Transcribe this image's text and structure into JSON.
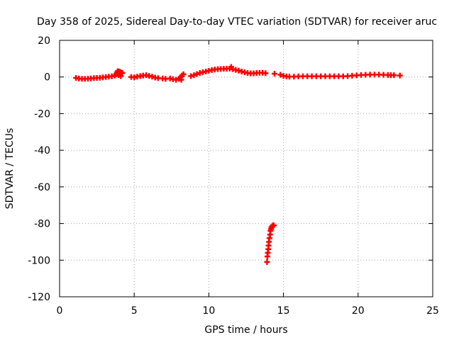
{
  "chart_data": {
    "type": "scatter",
    "title": "Day 358 of 2025, Sidereal Day-to-day VTEC variation (SDTVAR) for receiver aruc",
    "xlabel": "GPS time / hours",
    "ylabel": "SDTVAR / TECUs",
    "xlim": [
      0,
      25
    ],
    "ylim": [
      -120,
      20
    ],
    "xticks": [
      0,
      5,
      10,
      15,
      20,
      25
    ],
    "yticks": [
      20,
      0,
      -20,
      -40,
      -60,
      -80,
      -100,
      -120
    ],
    "grid": true,
    "legend": "none",
    "marker": "plus",
    "color": "#ff0000",
    "series": [
      {
        "points": [
          [
            1.1,
            -0.5
          ],
          [
            1.3,
            -0.8
          ],
          [
            1.5,
            -1.0
          ],
          [
            1.7,
            -1.0
          ],
          [
            1.9,
            -0.9
          ],
          [
            2.1,
            -0.8
          ],
          [
            2.3,
            -0.6
          ],
          [
            2.5,
            -0.5
          ],
          [
            2.7,
            -0.4
          ],
          [
            2.9,
            -0.2
          ],
          [
            3.1,
            0.0
          ],
          [
            3.3,
            0.2
          ],
          [
            3.5,
            0.4
          ],
          [
            3.7,
            0.8
          ],
          [
            3.8,
            1.5
          ],
          [
            3.85,
            2.5
          ],
          [
            3.9,
            3.2
          ],
          [
            4.0,
            3.0
          ],
          [
            4.1,
            2.6
          ],
          [
            4.2,
            2.2
          ],
          [
            3.95,
            1.0
          ],
          [
            4.1,
            0.5
          ],
          [
            4.8,
            0.0
          ],
          [
            5.0,
            -0.2
          ],
          [
            5.2,
            0.2
          ],
          [
            5.4,
            0.5
          ],
          [
            5.6,
            0.8
          ],
          [
            5.8,
            1.0
          ],
          [
            6.0,
            0.6
          ],
          [
            6.2,
            0.2
          ],
          [
            6.4,
            -0.3
          ],
          [
            6.6,
            -0.6
          ],
          [
            6.9,
            -0.8
          ],
          [
            7.1,
            -1.0
          ],
          [
            7.4,
            -0.8
          ],
          [
            7.6,
            -1.2
          ],
          [
            7.8,
            -1.5
          ],
          [
            8.0,
            -1.0
          ],
          [
            8.1,
            -0.2
          ],
          [
            8.2,
            0.8
          ],
          [
            8.3,
            1.5
          ],
          [
            8.15,
            -1.5
          ],
          [
            8.8,
            0.5
          ],
          [
            9.0,
            1.0
          ],
          [
            9.2,
            1.6
          ],
          [
            9.4,
            2.2
          ],
          [
            9.6,
            2.6
          ],
          [
            9.8,
            3.0
          ],
          [
            10.0,
            3.4
          ],
          [
            10.2,
            3.8
          ],
          [
            10.4,
            4.1
          ],
          [
            10.6,
            4.3
          ],
          [
            10.8,
            4.4
          ],
          [
            11.0,
            4.5
          ],
          [
            11.2,
            4.5
          ],
          [
            11.4,
            4.6
          ],
          [
            11.5,
            5.5
          ],
          [
            11.6,
            4.3
          ],
          [
            11.8,
            3.9
          ],
          [
            12.0,
            3.5
          ],
          [
            12.2,
            3.0
          ],
          [
            12.4,
            2.6
          ],
          [
            12.6,
            2.2
          ],
          [
            12.8,
            2.0
          ],
          [
            13.0,
            2.0
          ],
          [
            13.2,
            2.2
          ],
          [
            13.4,
            2.3
          ],
          [
            13.6,
            2.3
          ],
          [
            13.8,
            2.1
          ],
          [
            14.4,
            1.8
          ],
          [
            14.8,
            1.2
          ],
          [
            15.0,
            0.6
          ],
          [
            15.2,
            0.3
          ],
          [
            15.4,
            0.2
          ],
          [
            15.7,
            0.2
          ],
          [
            16.0,
            0.3
          ],
          [
            16.3,
            0.4
          ],
          [
            16.6,
            0.4
          ],
          [
            16.9,
            0.4
          ],
          [
            17.2,
            0.4
          ],
          [
            17.5,
            0.4
          ],
          [
            17.8,
            0.4
          ],
          [
            18.1,
            0.4
          ],
          [
            18.4,
            0.4
          ],
          [
            18.7,
            0.4
          ],
          [
            19.0,
            0.4
          ],
          [
            19.3,
            0.5
          ],
          [
            19.6,
            0.7
          ],
          [
            19.9,
            0.9
          ],
          [
            20.2,
            1.1
          ],
          [
            20.5,
            1.2
          ],
          [
            20.8,
            1.3
          ],
          [
            21.1,
            1.3
          ],
          [
            21.4,
            1.3
          ],
          [
            21.7,
            1.2
          ],
          [
            22.0,
            1.1
          ],
          [
            22.2,
            1.0
          ],
          [
            22.4,
            1.0
          ],
          [
            22.8,
            0.8
          ],
          [
            13.9,
            -101
          ],
          [
            13.92,
            -98
          ],
          [
            13.95,
            -96
          ],
          [
            13.98,
            -94
          ],
          [
            14.0,
            -92
          ],
          [
            14.03,
            -90
          ],
          [
            14.06,
            -88
          ],
          [
            14.1,
            -86
          ],
          [
            14.13,
            -84
          ],
          [
            14.17,
            -83
          ],
          [
            14.2,
            -82
          ],
          [
            14.25,
            -81.5
          ],
          [
            14.3,
            -81
          ],
          [
            14.35,
            -81
          ]
        ]
      }
    ]
  }
}
